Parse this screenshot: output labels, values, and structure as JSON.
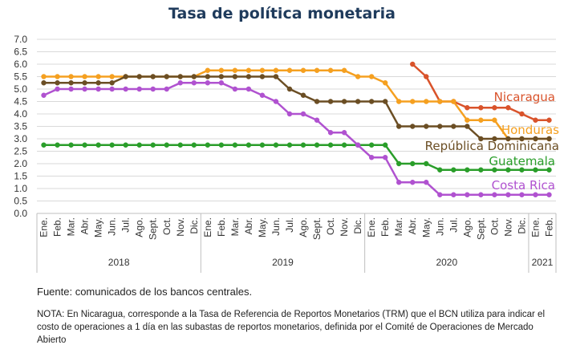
{
  "title": "Tasa de política monetaria",
  "source": "Fuente: comunicados de los bancos centrales.",
  "note": "NOTA: En Nicaragua, corresponde a la Tasa de Referencia de Reportos Monetarios (TRM) que el BCN utiliza para indicar el costo de operaciones a 1 día en las subastas de reportos monetarios, definida por el Comité de Operaciones de Mercado Abierto",
  "chart_data": {
    "type": "line",
    "title": "Tasa de política monetaria",
    "ylim": [
      0,
      7
    ],
    "yticks": [
      "0.0",
      "0.5",
      "1.0",
      "1.5",
      "2.0",
      "2.5",
      "3.0",
      "3.5",
      "4.0",
      "4.5",
      "5.0",
      "5.5",
      "6.0",
      "6.5",
      "7.0"
    ],
    "grid": true,
    "months": [
      "Ene.",
      "Feb.",
      "Mar.",
      "Abr.",
      "May.",
      "Jun.",
      "Jul.",
      "Ago.",
      "Sept.",
      "Oct.",
      "Nov.",
      "Dic.",
      "Ene.",
      "Feb.",
      "Mar.",
      "Abr.",
      "May.",
      "Jun.",
      "Jul.",
      "Ago.",
      "Sept.",
      "Oct.",
      "Nov.",
      "Dic.",
      "Ene.",
      "Feb.",
      "Mar.",
      "Abr.",
      "May.",
      "Jun.",
      "Jul.",
      "Ago.",
      "Sept.",
      "Oct.",
      "Nov.",
      "Dic.",
      "Ene.",
      "Feb."
    ],
    "years": [
      {
        "label": "2018",
        "start": 0,
        "end": 11
      },
      {
        "label": "2019",
        "start": 12,
        "end": 23
      },
      {
        "label": "2020",
        "start": 24,
        "end": 35
      },
      {
        "label": "2021",
        "start": 36,
        "end": 37
      }
    ],
    "series": [
      {
        "name": "Nicaragua",
        "color": "#d9532b",
        "values": [
          null,
          null,
          null,
          null,
          null,
          null,
          null,
          null,
          null,
          null,
          null,
          null,
          null,
          null,
          null,
          null,
          null,
          null,
          null,
          null,
          null,
          null,
          null,
          null,
          null,
          null,
          null,
          6.0,
          5.5,
          4.5,
          4.5,
          4.25,
          4.25,
          4.25,
          4.25,
          4.0,
          3.75,
          3.75
        ]
      },
      {
        "name": "Honduras",
        "color": "#f5a020",
        "values": [
          5.5,
          5.5,
          5.5,
          5.5,
          5.5,
          5.5,
          5.5,
          5.5,
          5.5,
          5.5,
          5.5,
          5.5,
          5.75,
          5.75,
          5.75,
          5.75,
          5.75,
          5.75,
          5.75,
          5.75,
          5.75,
          5.75,
          5.75,
          5.5,
          5.5,
          5.25,
          4.5,
          4.5,
          4.5,
          4.5,
          4.5,
          3.75,
          3.75,
          3.75,
          3.0,
          3.0,
          3.0,
          3.0
        ]
      },
      {
        "name": "República Dominicana",
        "color": "#6b4e24",
        "values": [
          5.25,
          5.25,
          5.25,
          5.25,
          5.25,
          5.25,
          5.5,
          5.5,
          5.5,
          5.5,
          5.5,
          5.5,
          5.5,
          5.5,
          5.5,
          5.5,
          5.5,
          5.5,
          5.0,
          4.75,
          4.5,
          4.5,
          4.5,
          4.5,
          4.5,
          4.5,
          3.5,
          3.5,
          3.5,
          3.5,
          3.5,
          3.5,
          3.0,
          3.0,
          3.0,
          3.0,
          3.0,
          3.0
        ]
      },
      {
        "name": "Guatemala",
        "color": "#2a9e2a",
        "values": [
          2.75,
          2.75,
          2.75,
          2.75,
          2.75,
          2.75,
          2.75,
          2.75,
          2.75,
          2.75,
          2.75,
          2.75,
          2.75,
          2.75,
          2.75,
          2.75,
          2.75,
          2.75,
          2.75,
          2.75,
          2.75,
          2.75,
          2.75,
          2.75,
          2.75,
          2.75,
          2.0,
          2.0,
          2.0,
          1.75,
          1.75,
          1.75,
          1.75,
          1.75,
          1.75,
          1.75,
          1.75,
          1.75
        ]
      },
      {
        "name": "Costa Rica",
        "color": "#b052d0",
        "values": [
          4.75,
          5.0,
          5.0,
          5.0,
          5.0,
          5.0,
          5.0,
          5.0,
          5.0,
          5.0,
          5.25,
          5.25,
          5.25,
          5.25,
          5.0,
          5.0,
          4.75,
          4.5,
          4.0,
          4.0,
          3.75,
          3.25,
          3.25,
          2.75,
          2.25,
          2.25,
          1.25,
          1.25,
          1.25,
          0.75,
          0.75,
          0.75,
          0.75,
          0.75,
          0.75,
          0.75,
          0.75,
          0.75
        ]
      }
    ]
  }
}
